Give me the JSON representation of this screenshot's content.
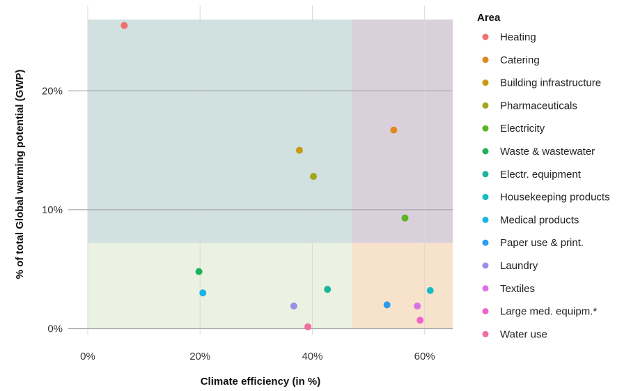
{
  "chart_data": {
    "type": "scatter",
    "xlabel": "Climate efficiency (in %)",
    "ylabel": "% of total Global warming potential (GWP)",
    "xlim": [
      0,
      0.65
    ],
    "ylim": [
      -0.5,
      26
    ],
    "x_ticks": [
      {
        "value": 0,
        "label": "0%"
      },
      {
        "value": 0.2,
        "label": "20%"
      },
      {
        "value": 0.4,
        "label": "40%"
      },
      {
        "value": 0.6,
        "label": "60%"
      }
    ],
    "y_ticks": [
      {
        "value": 0,
        "label": "0%"
      },
      {
        "value": 10,
        "label": "10%"
      },
      {
        "value": 20,
        "label": "20%"
      }
    ],
    "grid": true,
    "background_regions": [
      {
        "x": [
          0,
          0.47
        ],
        "y": [
          7.2,
          26
        ],
        "color": "#d0e1e0"
      },
      {
        "x": [
          0.47,
          0.65
        ],
        "y": [
          7.2,
          26
        ],
        "color": "#dad0dc"
      },
      {
        "x": [
          0,
          0.47
        ],
        "y": [
          0,
          7.2
        ],
        "color": "#ebf2e2"
      },
      {
        "x": [
          0.47,
          0.65
        ],
        "y": [
          0,
          7.2
        ],
        "color": "#f7e3cb"
      }
    ],
    "legend_title": "Area",
    "legend_position": "right",
    "series": [
      {
        "name": "Heating",
        "color": "#f0706b",
        "x": 0.065,
        "y": 25.5
      },
      {
        "name": "Catering",
        "color": "#de8a1c",
        "x": 0.545,
        "y": 16.7
      },
      {
        "name": "Building infrastructure",
        "color": "#c79a10",
        "x": 0.377,
        "y": 15.0
      },
      {
        "name": "Pharmaceuticals",
        "color": "#a3a51c",
        "x": 0.402,
        "y": 12.8
      },
      {
        "name": "Electricity",
        "color": "#5db321",
        "x": 0.565,
        "y": 9.3
      },
      {
        "name": "Waste & wastewater",
        "color": "#1eb25a",
        "x": 0.198,
        "y": 4.8
      },
      {
        "name": "Electr. equipment",
        "color": "#19b69c",
        "x": 0.427,
        "y": 3.3
      },
      {
        "name": "Housekeeping products",
        "color": "#19bcc4",
        "x": 0.61,
        "y": 3.2
      },
      {
        "name": "Medical products",
        "color": "#18b4e6",
        "x": 0.205,
        "y": 3.0
      },
      {
        "name": "Paper use & print.",
        "color": "#2a9df0",
        "x": 0.533,
        "y": 2.0
      },
      {
        "name": "Laundry",
        "color": "#9b8ee8",
        "x": 0.367,
        "y": 1.9
      },
      {
        "name": "Textiles",
        "color": "#dc72e8",
        "x": 0.587,
        "y": 1.9
      },
      {
        "name": "Large med. equipm.*",
        "color": "#f064c8",
        "x": 0.592,
        "y": 0.7
      },
      {
        "name": "Water use",
        "color": "#f36ba1",
        "x": 0.392,
        "y": 0.15
      }
    ]
  }
}
